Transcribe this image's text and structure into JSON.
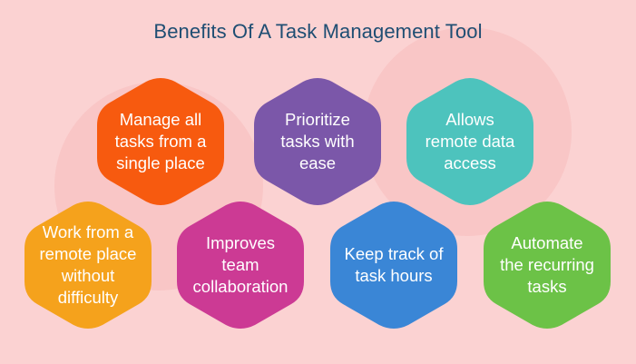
{
  "title": "Benefits Of A Task Management Tool",
  "colors": {
    "background": "#fbd2d2",
    "title": "#1f4e73"
  },
  "benefits": [
    {
      "label": "Manage all\ntasks from a\nsingle place",
      "color": "#f75a0f"
    },
    {
      "label": "Prioritize\ntasks with\nease",
      "color": "#7b57a9"
    },
    {
      "label": "Allows\nremote data\naccess",
      "color": "#4dc3bd"
    },
    {
      "label": "Work from a\nremote place\nwithout\ndifficulty",
      "color": "#f5a21c"
    },
    {
      "label": "Improves\nteam\ncollaboration",
      "color": "#cc3a94"
    },
    {
      "label": "Keep track of\ntask hours",
      "color": "#3a86d6"
    },
    {
      "label": "Automate\nthe recurring\ntasks",
      "color": "#6cc247"
    }
  ]
}
